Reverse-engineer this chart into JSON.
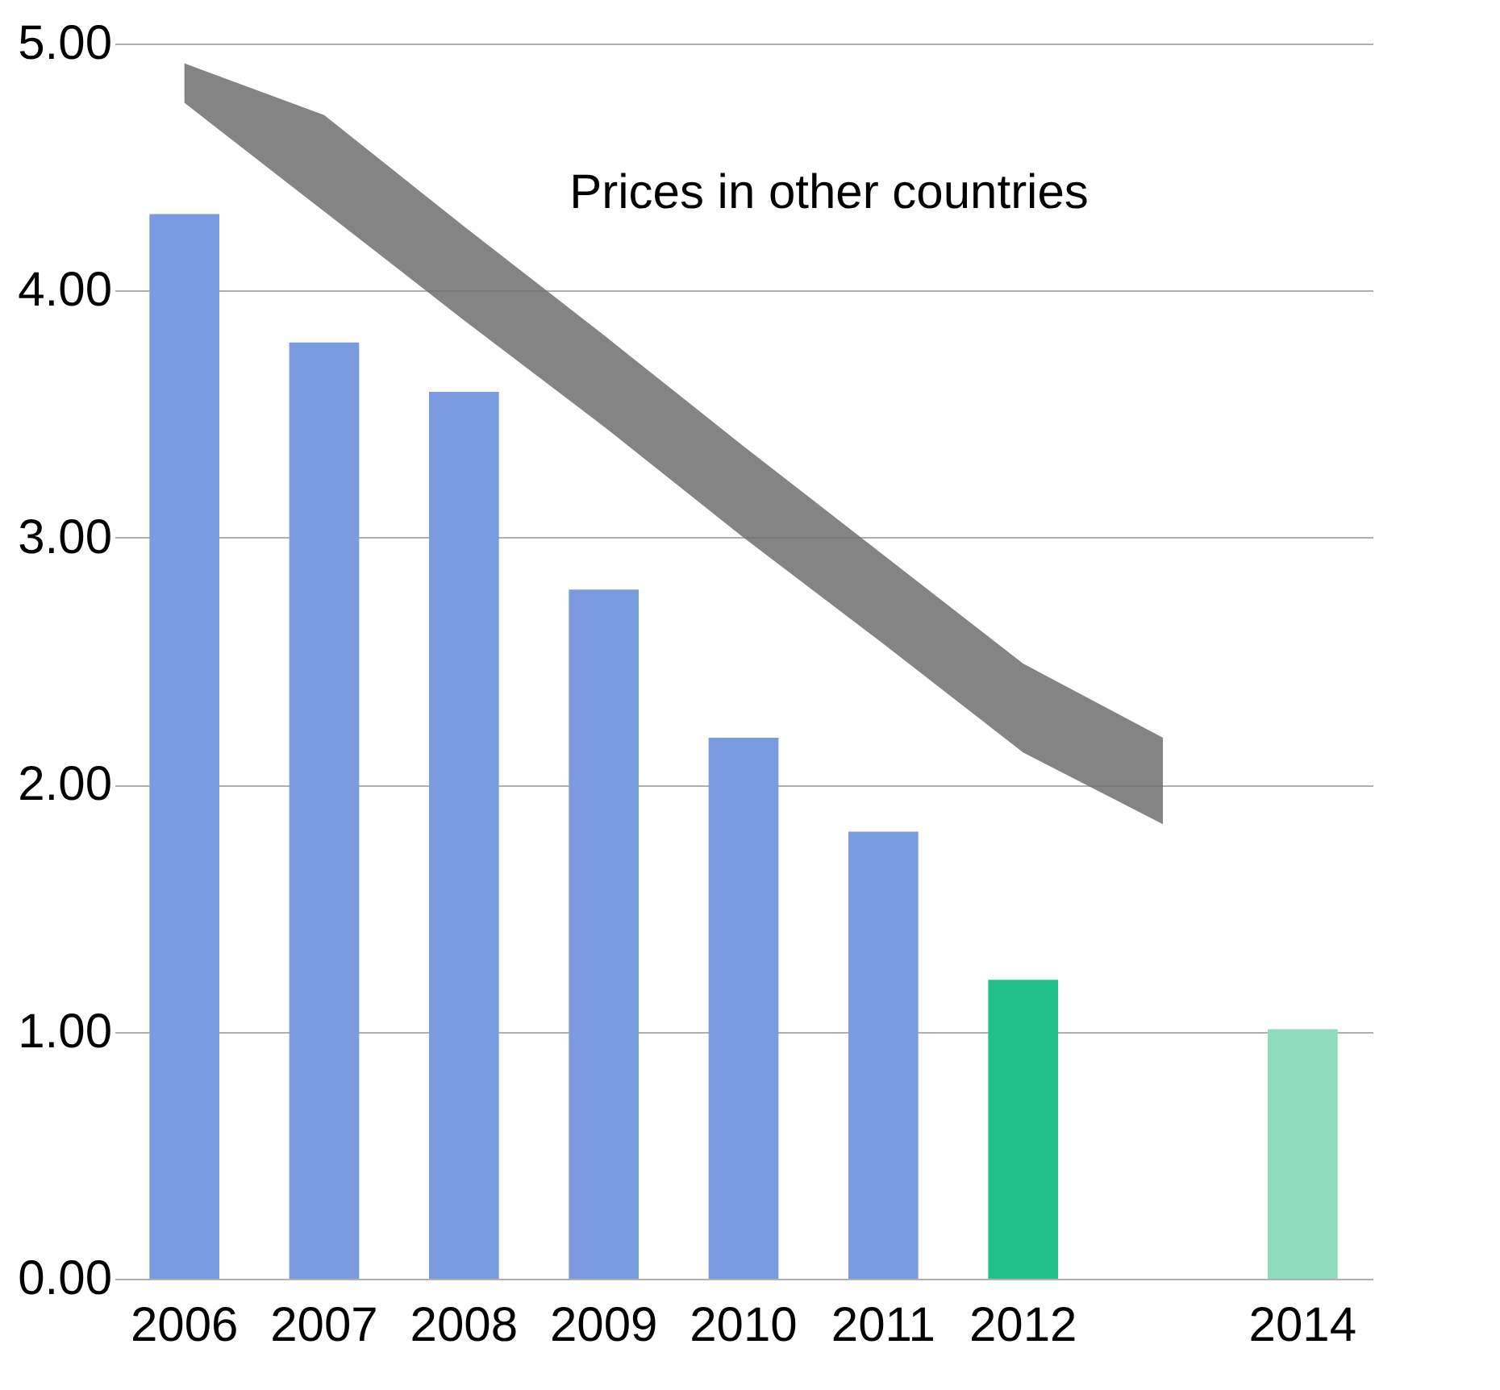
{
  "chart_data": {
    "type": "bar",
    "categories": [
      "2006",
      "2007",
      "2008",
      "2009",
      "2010",
      "2011",
      "2012",
      null,
      "2014"
    ],
    "series": [
      {
        "values": [
          4.31,
          3.79,
          3.59,
          2.79,
          2.19,
          1.81,
          1.21,
          null,
          1.01
        ],
        "colors": [
          "#7b9be0",
          "#7b9be0",
          "#7b9be0",
          "#7b9be0",
          "#7b9be0",
          "#7b9be0",
          "#22c08a",
          null,
          "#8fdcbf"
        ]
      },
      {
        "type": "area",
        "color": "#6e6e6e",
        "values": [
          null,
          null,
          null,
          null,
          null,
          null,
          null,
          null,
          null
        ],
        "lower": [
          4.76,
          4.32,
          3.88,
          3.45,
          3.0,
          2.57,
          2.13,
          1.84,
          null
        ],
        "upper": [
          4.92,
          4.71,
          4.26,
          3.82,
          3.37,
          2.93,
          2.49,
          2.19,
          null
        ]
      }
    ],
    "ylim": [
      0,
      5
    ],
    "yticks": [
      {
        "value": 0,
        "label": "0.00"
      },
      {
        "value": 1,
        "label": "1.00"
      },
      {
        "value": 2,
        "label": "2.00"
      },
      {
        "value": 3,
        "label": "3.00"
      },
      {
        "value": 4,
        "label": "4.00"
      },
      {
        "value": 5,
        "label": "5.00"
      }
    ],
    "grid": "y",
    "annotations": [
      "Prices in other countries"
    ]
  }
}
